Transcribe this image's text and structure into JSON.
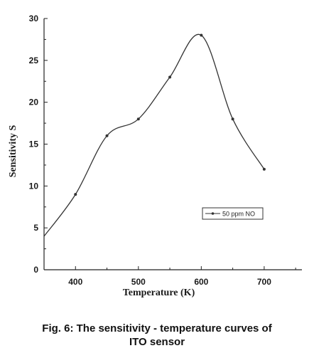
{
  "caption": {
    "line1": "Fig. 6: The sensitivity - temperature curves of",
    "line2": "ITO sensor"
  },
  "chart_data": {
    "type": "line",
    "xlabel": "Temperature (K)",
    "ylabel": "Sensitivity S",
    "xlim": [
      350,
      760
    ],
    "ylim": [
      0,
      30
    ],
    "xticks": [
      400,
      500,
      600,
      700
    ],
    "yticks": [
      0,
      5,
      10,
      15,
      20,
      25,
      30
    ],
    "grid": false,
    "legend_position": "right",
    "series": [
      {
        "name": "50 ppm NO",
        "x": [
          350,
          400,
          450,
          500,
          550,
          600,
          650,
          700
        ],
        "values": [
          4,
          9,
          16,
          18,
          23,
          28,
          18,
          12
        ]
      }
    ]
  }
}
